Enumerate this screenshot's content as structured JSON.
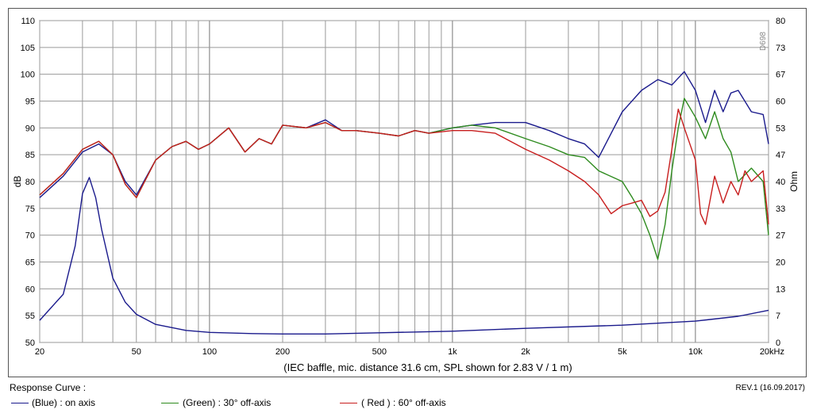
{
  "chart_data": {
    "type": "line",
    "xscale": "log",
    "xlim": [
      20,
      20000
    ],
    "ylim": [
      50,
      110
    ],
    "ylim_right": [
      0,
      80
    ],
    "ylabel": "dB",
    "ylabel_right": "Ohm",
    "x_ticks": [
      20,
      50,
      100,
      200,
      500,
      1000,
      2000,
      5000,
      10000,
      20000
    ],
    "x_tick_labels": [
      "20",
      "50",
      "100",
      "200",
      "500",
      "1k",
      "2k",
      "5k",
      "10k",
      "20kHz"
    ],
    "y_ticks": [
      "50",
      "55",
      "60",
      "65",
      "70",
      "75",
      "80",
      "85",
      "90",
      "95",
      "100",
      "105",
      "110"
    ],
    "y_ticks_right": [
      "0",
      "7",
      "13",
      "20",
      "27",
      "33",
      "40",
      "47",
      "53",
      "60",
      "67",
      "73",
      "80"
    ],
    "grid": true,
    "caption": "(IEC baffle, mic. distance 31.6 cm, SPL shown for 2.83 V / 1 m)",
    "watermark": "D698",
    "series": [
      {
        "name": "(Blue) : on axis",
        "color": "#1a1a8c",
        "x": [
          20,
          25,
          30,
          35,
          40,
          45,
          50,
          60,
          70,
          80,
          90,
          100,
          120,
          140,
          160,
          180,
          200,
          250,
          300,
          350,
          400,
          500,
          600,
          700,
          800,
          1000,
          1200,
          1500,
          2000,
          2500,
          3000,
          3500,
          4000,
          5000,
          6000,
          7000,
          8000,
          9000,
          10000,
          11000,
          12000,
          13000,
          14000,
          15000,
          17000,
          19000,
          20000
        ],
        "y": [
          77,
          81,
          85.5,
          87,
          85,
          80,
          77.5,
          84,
          86.5,
          87.5,
          86,
          87,
          90,
          85.5,
          88,
          87,
          90.5,
          90,
          91.5,
          89.5,
          89.5,
          89,
          88.5,
          89.5,
          89,
          90,
          90.5,
          91,
          91,
          89.5,
          88,
          87,
          84.5,
          93,
          97,
          99,
          98,
          100.5,
          97,
          91,
          97,
          93,
          96.5,
          97,
          93,
          92.5,
          87
        ]
      },
      {
        "name": "(Green) : 30° off-axis",
        "color": "#2e8b1e",
        "x": [
          20,
          25,
          30,
          35,
          40,
          45,
          50,
          60,
          70,
          80,
          90,
          100,
          120,
          140,
          160,
          180,
          200,
          250,
          300,
          350,
          400,
          500,
          600,
          700,
          800,
          1000,
          1200,
          1500,
          2000,
          2500,
          3000,
          3500,
          4000,
          5000,
          5500,
          6000,
          6500,
          7000,
          7500,
          8000,
          8500,
          9000,
          10000,
          11000,
          12000,
          13000,
          14000,
          15000,
          17000,
          19000,
          20000
        ],
        "y": [
          77.5,
          81.5,
          86,
          87.5,
          85,
          79.5,
          77,
          84,
          86.5,
          87.5,
          86,
          87,
          90,
          85.5,
          88,
          87,
          90.5,
          90,
          91,
          89.5,
          89.5,
          89,
          88.5,
          89.5,
          89,
          90,
          90.5,
          90,
          88,
          86.5,
          85,
          84.5,
          82,
          80,
          77,
          74,
          70,
          65.5,
          72,
          82,
          90,
          95.5,
          92,
          88,
          93,
          88,
          85.5,
          80,
          82.5,
          80,
          70
        ]
      },
      {
        "name": "( Red ) : 60° off-axis",
        "color": "#c81e1e",
        "x": [
          20,
          25,
          30,
          35,
          40,
          45,
          50,
          60,
          70,
          80,
          90,
          100,
          120,
          140,
          160,
          180,
          200,
          250,
          300,
          350,
          400,
          500,
          600,
          700,
          800,
          1000,
          1200,
          1500,
          2000,
          2500,
          3000,
          3500,
          4000,
          4500,
          5000,
          5500,
          6000,
          6500,
          7000,
          7500,
          8000,
          8500,
          9000,
          10000,
          10500,
          11000,
          12000,
          13000,
          14000,
          15000,
          16000,
          17000,
          19000,
          20000
        ],
        "y": [
          77.5,
          81.5,
          86,
          87.5,
          85,
          79.5,
          77,
          84,
          86.5,
          87.5,
          86,
          87,
          90,
          85.5,
          88,
          87,
          90.5,
          90,
          91,
          89.5,
          89.5,
          89,
          88.5,
          89.5,
          89,
          89.5,
          89.5,
          89,
          86,
          84,
          82,
          80,
          77.5,
          74,
          75.5,
          76,
          76.5,
          73.5,
          74.5,
          78,
          86,
          93.5,
          90,
          84,
          74,
          72,
          81,
          76,
          80,
          77.5,
          82,
          80,
          82,
          72
        ]
      },
      {
        "name": "Impedance",
        "axis": "right",
        "color": "#1a1a8c",
        "x": [
          20,
          25,
          28,
          30,
          32,
          34,
          36,
          40,
          45,
          50,
          60,
          80,
          100,
          150,
          200,
          300,
          500,
          1000,
          2000,
          5000,
          10000,
          15000,
          20000
        ],
        "y": [
          5.5,
          12,
          24,
          37,
          41,
          36,
          28,
          16,
          10,
          7,
          4.5,
          3,
          2.5,
          2.2,
          2.1,
          2.1,
          2.4,
          2.8,
          3.5,
          4.3,
          5.3,
          6.5,
          8
        ]
      }
    ]
  },
  "footer": {
    "response_curve_label": "Response Curve :",
    "revision": "REV.1 (16.09.2017)"
  }
}
